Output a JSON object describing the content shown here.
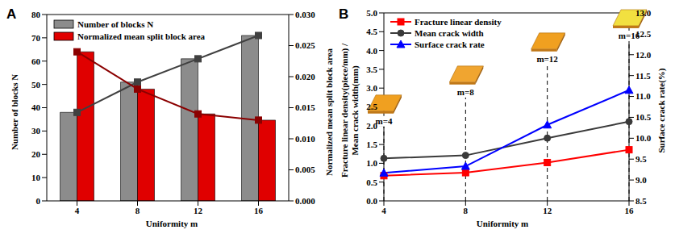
{
  "chart_data": [
    {
      "type": "bar",
      "title": "A",
      "categories": [
        "4",
        "8",
        "12",
        "16"
      ],
      "xlabel": "Uniformity m",
      "ylabel": "Number of blocks N",
      "y2label": "Normalized mean split block area",
      "ylim": [
        0,
        80
      ],
      "yticks": [
        0,
        10,
        20,
        30,
        40,
        50,
        60,
        70,
        80
      ],
      "y2lim": [
        0,
        0.03
      ],
      "y2ticks": [
        {
          "value": 0,
          "label": "0.000"
        },
        {
          "value": 0.005,
          "label": "0.005"
        },
        {
          "value": 0.01,
          "label": "0.010"
        },
        {
          "value": 0.015,
          "label": "0.015"
        },
        {
          "value": 0.02,
          "label": "0.020"
        },
        {
          "value": 0.025,
          "label": "0.025"
        },
        {
          "value": 0.03,
          "label": "0.030"
        }
      ],
      "legend": "upper left",
      "series": [
        {
          "name": "Number of blocks N",
          "type": "bar",
          "color": "#8c8c8c",
          "marker": "square",
          "values": [
            38,
            51,
            61,
            71
          ]
        },
        {
          "name": "Normalized mean split block area",
          "type": "bar",
          "axis": "y2",
          "color": "#e00000",
          "marker": "square",
          "values": [
            0.024,
            0.018,
            0.014,
            0.013
          ]
        }
      ]
    },
    {
      "type": "line",
      "title": "B",
      "categories": [
        "4",
        "8",
        "12",
        "16"
      ],
      "xlabel": "Uniformity m",
      "ylabel": [
        "Fracture linear density(piece/mm) /",
        "Mean crack width(mm)"
      ],
      "y2label": "Surface crack rate(%)",
      "ylim": [
        0,
        5
      ],
      "yticks": [
        {
          "value": 0,
          "label": "0.0"
        },
        0.5,
        {
          "value": 1,
          "label": "1.0"
        },
        1.5,
        {
          "value": 2,
          "label": "2.0"
        },
        2.5,
        {
          "value": 3,
          "label": "3.0"
        },
        3.5,
        {
          "value": 4,
          "label": "4.0"
        },
        4.5,
        {
          "value": 5,
          "label": "5.0"
        }
      ],
      "y2lim": [
        8.5,
        13
      ],
      "y2ticks": [
        8.5,
        {
          "value": 9,
          "label": "9.0"
        },
        9.5,
        {
          "value": 10,
          "label": "10.0"
        },
        10.5,
        {
          "value": 11,
          "label": "11.0"
        },
        11.5,
        {
          "value": 12,
          "label": "12.0"
        },
        12.5,
        {
          "value": 13,
          "label": "13.0"
        }
      ],
      "legend": "upper left",
      "series": [
        {
          "name": "Fracture linear density",
          "color": "#ff0000",
          "marker": "square",
          "values": [
            0.67,
            0.75,
            1.02,
            1.36
          ]
        },
        {
          "name": "Mean crack width",
          "color": "#3a3a3a",
          "marker": "circle",
          "values": [
            1.13,
            1.21,
            1.67,
            2.11
          ]
        },
        {
          "name": "Surface crack rate",
          "color": "#0000ff",
          "marker": "triangle",
          "axis": "y2",
          "values": [
            9.17,
            9.33,
            10.32,
            11.15
          ]
        }
      ],
      "annotations": [
        {
          "x": "4",
          "y": 2.13,
          "label": "m=4"
        },
        {
          "x": "8",
          "y": 2.9,
          "label": "m=8"
        },
        {
          "x": "12",
          "y": 3.78,
          "label": "m=12"
        },
        {
          "x": "16",
          "y": 4.4,
          "label": "m=16"
        }
      ]
    }
  ]
}
